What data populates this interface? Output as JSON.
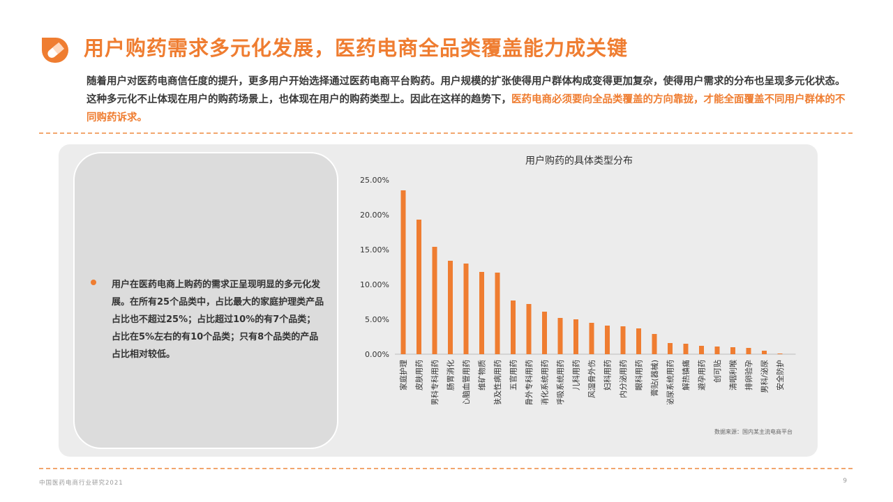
{
  "header": {
    "title": "用户购药需求多元化发展，医药电商全品类覆盖能力成关键",
    "intro_text": "随着用户对医药电商信任度的提升，更多用户开始选择通过医药电商平台购药。用户规模的扩张使得用户群体构成变得更加复杂，使得用户需求的分布也呈现多元化状态。这种多元化不止体现在用户的购药场景上，也体现在用户的购药类型上。因此在这样的趋势下，",
    "intro_highlight": "医药电商必须要向全品类覆盖的方向靠拢，才能全面覆盖不同用户群体的不同购药诉求。"
  },
  "insight": {
    "text": "用户在医药电商上购药的需求正呈现明显的多元化发展。在所有25个品类中，占比最大的家庭护理类产品占比也不超过25%；占比超过10%的有7个品类；占比在5%左右的有10个品类；只有8个品类的产品占比相对较低。"
  },
  "chart_data": {
    "type": "bar",
    "title": "用户购药的具体类型分布",
    "categories": [
      "家庭护理",
      "皮肤用药",
      "男科专科用药",
      "肠胃消化",
      "心脑血管用药",
      "维矿物质",
      "皮肤及性病用药",
      "五官用药",
      "风湿骨外专科用药",
      "消化系统用药",
      "呼吸系统用药",
      "儿科用药",
      "风湿骨外伤",
      "妇科用药",
      "内分泌用药",
      "眼科用药",
      "膏贴(器械)",
      "泌尿系统用药",
      "解热镇痛",
      "避孕用药",
      "创可贴",
      "清咽利喉",
      "排卵验孕",
      "男科/泌尿",
      "安全防护"
    ],
    "values": [
      23.5,
      19.3,
      15.4,
      13.4,
      13.0,
      11.8,
      11.7,
      7.7,
      7.2,
      6.1,
      5.2,
      5.0,
      4.5,
      4.1,
      4.0,
      3.7,
      2.9,
      1.6,
      1.5,
      1.2,
      1.1,
      1.0,
      0.9,
      0.5,
      0.1
    ],
    "ylim": [
      0,
      25
    ],
    "yticks": [
      "0.00%",
      "5.00%",
      "10.00%",
      "15.00%",
      "20.00%",
      "25.00%"
    ],
    "bar_color": "#ef7d31",
    "grid": false,
    "xlabel": "",
    "ylabel": ""
  },
  "source_note": "数据来源：国内某主流电商平台",
  "footer": {
    "report_name": "中国医药电商行业研究2021",
    "page_number": "9"
  },
  "colors": {
    "accent": "#ef7d31",
    "panel": "#ececec",
    "card": "#dcdcdc"
  }
}
